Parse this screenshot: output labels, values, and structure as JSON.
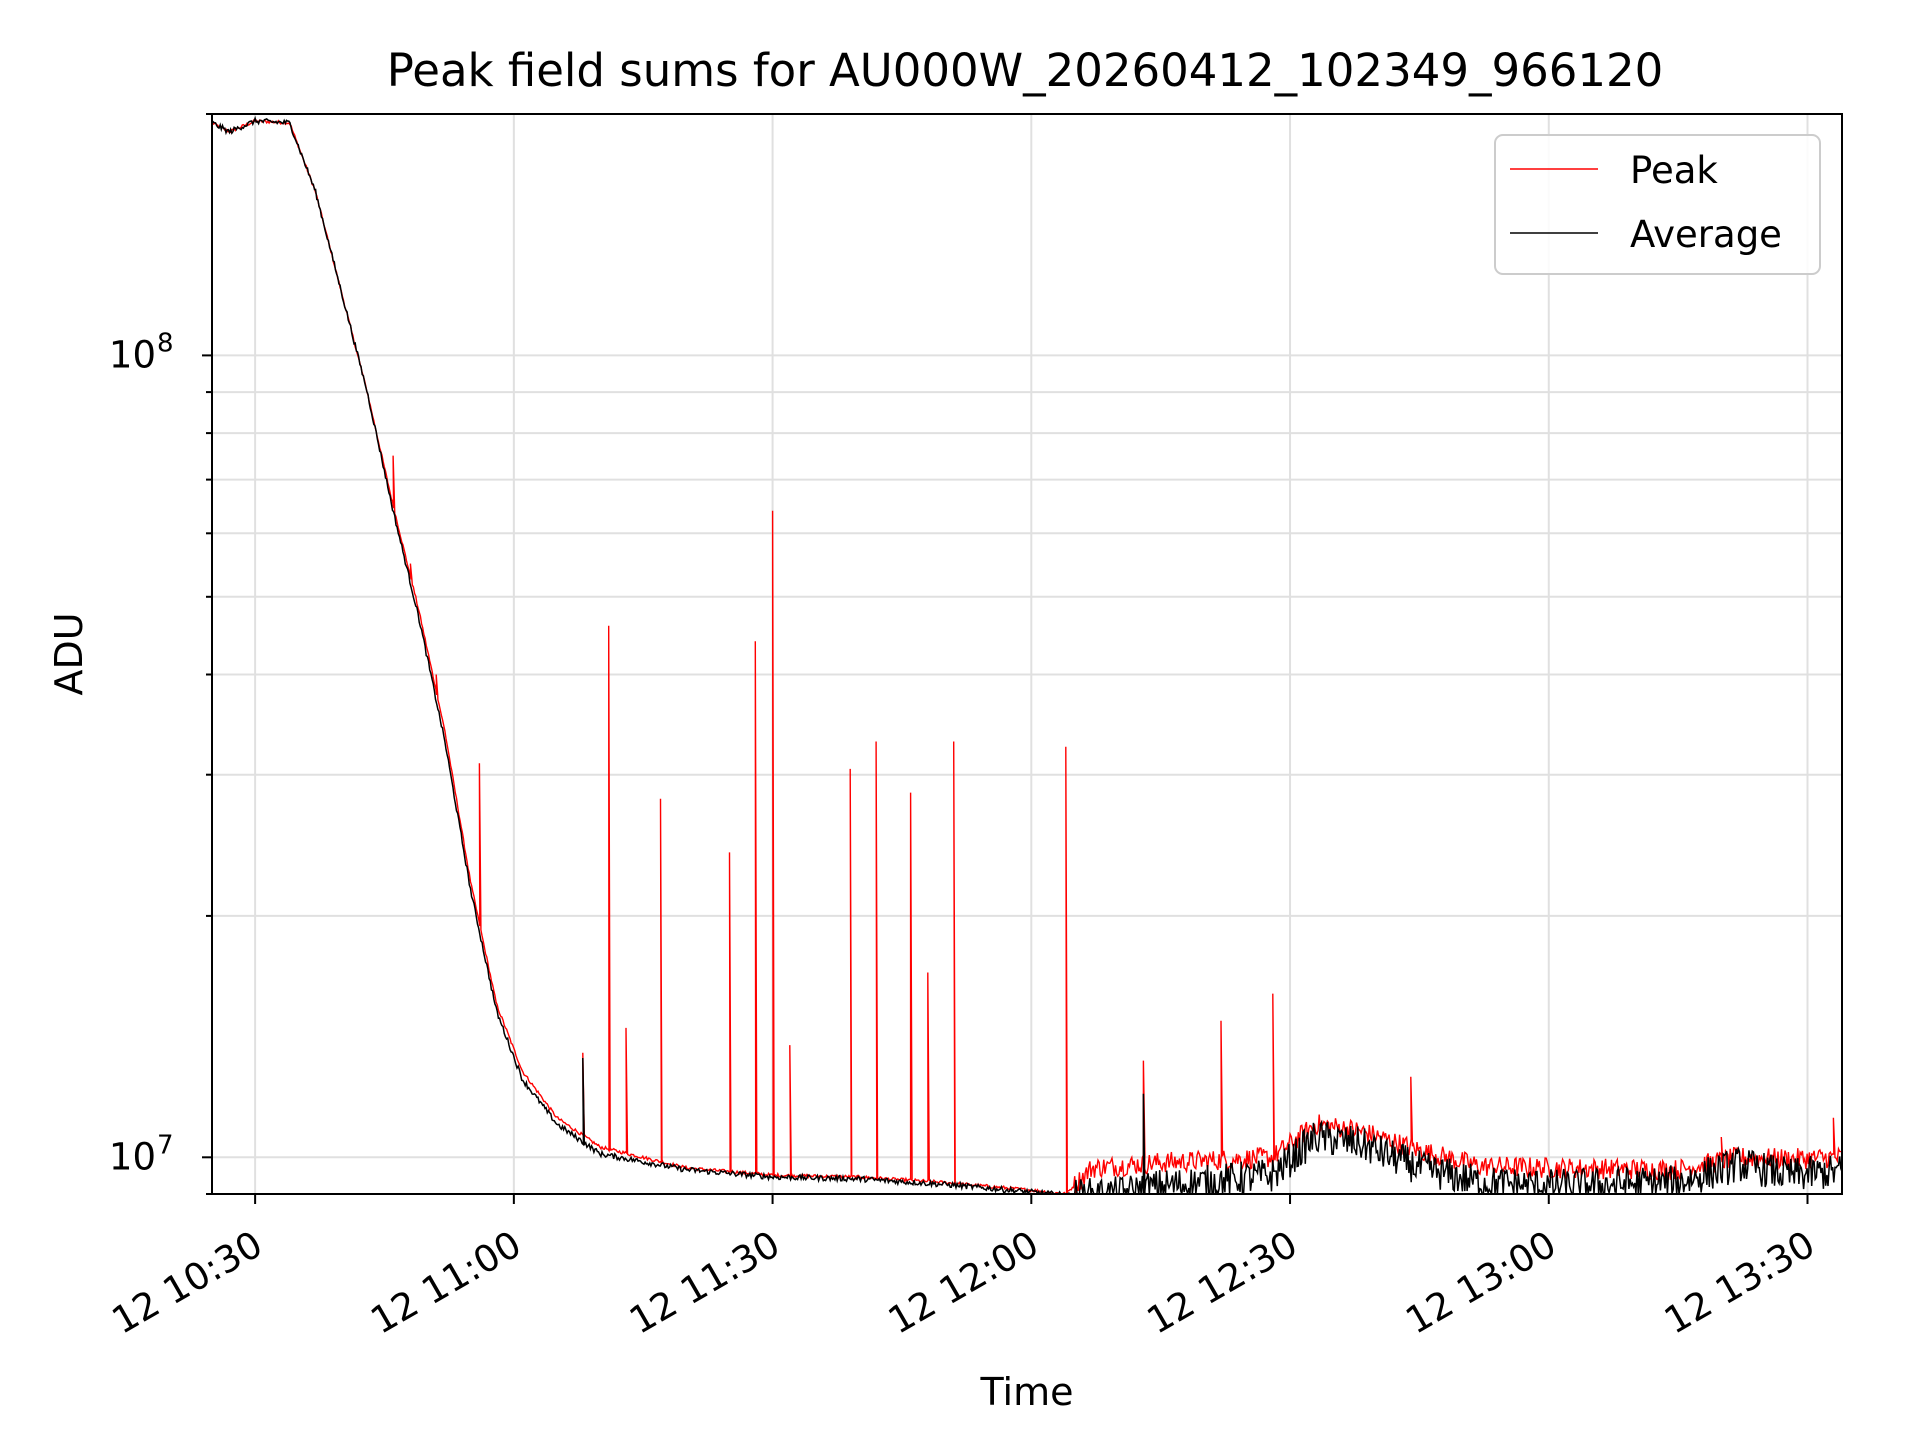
{
  "chart_data": {
    "type": "line",
    "title": "Peak field sums for AU000W_20260412_102349_966120",
    "xlabel": "Time",
    "ylabel": "ADU",
    "yscale": "log",
    "ylim": [
      9000000,
      200000000
    ],
    "xlim": [
      "2026-04-12 10:25",
      "2026-04-12 13:34"
    ],
    "x_ticks": [
      "12 10:30",
      "12 11:00",
      "12 11:30",
      "12 12:00",
      "12 12:30",
      "12 13:00",
      "12 13:30"
    ],
    "y_ticks": [
      {
        "base": "10",
        "exp": "7"
      },
      {
        "base": "10",
        "exp": "8"
      }
    ],
    "grid": true,
    "legend_position": "top-right",
    "series": [
      {
        "name": "Peak",
        "color": "#ff0000",
        "baseline": [
          [
            "2026-04-12 10:25",
            195000000
          ],
          [
            "2026-04-12 10:27",
            190000000
          ],
          [
            "2026-04-12 10:30",
            196000000
          ],
          [
            "2026-04-12 10:34",
            195000000
          ],
          [
            "2026-04-12 10:37",
            160000000
          ],
          [
            "2026-04-12 10:40",
            120000000
          ],
          [
            "2026-04-12 10:43",
            90000000
          ],
          [
            "2026-04-12 10:46",
            65000000
          ],
          [
            "2026-04-12 10:49",
            48000000
          ],
          [
            "2026-04-12 10:52",
            34000000
          ],
          [
            "2026-04-12 10:55",
            22000000
          ],
          [
            "2026-04-12 10:58",
            15500000
          ],
          [
            "2026-04-12 11:01",
            12800000
          ],
          [
            "2026-04-12 11:05",
            11200000
          ],
          [
            "2026-04-12 11:10",
            10300000
          ],
          [
            "2026-04-12 11:20",
            9700000
          ],
          [
            "2026-04-12 11:30",
            9500000
          ],
          [
            "2026-04-12 11:40",
            9450000
          ],
          [
            "2026-04-12 11:50",
            9300000
          ],
          [
            "2026-04-12 12:00",
            9100000
          ],
          [
            "2026-04-12 12:04",
            9000000
          ],
          [
            "2026-04-12 12:07",
            9700000
          ],
          [
            "2026-04-12 12:15",
            9850000
          ],
          [
            "2026-04-12 12:20",
            9900000
          ],
          [
            "2026-04-12 12:28",
            10000000
          ],
          [
            "2026-04-12 12:33",
            11000000
          ],
          [
            "2026-04-12 12:38",
            10800000
          ],
          [
            "2026-04-12 12:45",
            10200000
          ],
          [
            "2026-04-12 12:52",
            9750000
          ],
          [
            "2026-04-12 13:00",
            9700000
          ],
          [
            "2026-04-12 13:15",
            9650000
          ],
          [
            "2026-04-12 13:22",
            10000000
          ],
          [
            "2026-04-12 13:28",
            9950000
          ],
          [
            "2026-04-12 13:34",
            10000000
          ]
        ],
        "spikes": [
          [
            "2026-04-12 10:46",
            75000000
          ],
          [
            "2026-04-12 10:48",
            55000000
          ],
          [
            "2026-04-12 10:51",
            40000000
          ],
          [
            "2026-04-12 10:56",
            31000000
          ],
          [
            "2026-04-12 11:08",
            13500000
          ],
          [
            "2026-04-12 11:11",
            46000000
          ],
          [
            "2026-04-12 11:13",
            14500000
          ],
          [
            "2026-04-12 11:17",
            28000000
          ],
          [
            "2026-04-12 11:25",
            24000000
          ],
          [
            "2026-04-12 11:28",
            44000000
          ],
          [
            "2026-04-12 11:30",
            64000000
          ],
          [
            "2026-04-12 11:32",
            13800000
          ],
          [
            "2026-04-12 11:39",
            30500000
          ],
          [
            "2026-04-12 11:42",
            33000000
          ],
          [
            "2026-04-12 11:46",
            28500000
          ],
          [
            "2026-04-12 11:48",
            17000000
          ],
          [
            "2026-04-12 11:51",
            33000000
          ],
          [
            "2026-04-12 12:04",
            32500000
          ],
          [
            "2026-04-12 12:13",
            13200000
          ],
          [
            "2026-04-12 12:22",
            14800000
          ],
          [
            "2026-04-12 12:28",
            16000000
          ],
          [
            "2026-04-12 12:44",
            12600000
          ],
          [
            "2026-04-12 13:20",
            10600000
          ],
          [
            "2026-04-12 13:33",
            11200000
          ]
        ]
      },
      {
        "name": "Average",
        "color": "#000000",
        "baseline": [
          [
            "2026-04-12 10:25",
            195000000
          ],
          [
            "2026-04-12 10:27",
            190000000
          ],
          [
            "2026-04-12 10:30",
            196000000
          ],
          [
            "2026-04-12 10:34",
            195000000
          ],
          [
            "2026-04-12 10:37",
            160000000
          ],
          [
            "2026-04-12 10:40",
            120000000
          ],
          [
            "2026-04-12 10:43",
            90000000
          ],
          [
            "2026-04-12 10:46",
            64000000
          ],
          [
            "2026-04-12 10:49",
            47000000
          ],
          [
            "2026-04-12 10:52",
            33000000
          ],
          [
            "2026-04-12 10:55",
            21500000
          ],
          [
            "2026-04-12 10:58",
            15200000
          ],
          [
            "2026-04-12 11:01",
            12500000
          ],
          [
            "2026-04-12 11:05",
            11000000
          ],
          [
            "2026-04-12 11:10",
            10100000
          ],
          [
            "2026-04-12 11:20",
            9650000
          ],
          [
            "2026-04-12 11:30",
            9450000
          ],
          [
            "2026-04-12 11:40",
            9400000
          ],
          [
            "2026-04-12 11:50",
            9250000
          ],
          [
            "2026-04-12 12:00",
            9050000
          ],
          [
            "2026-04-12 12:05",
            8950000
          ],
          [
            "2026-04-12 12:10",
            9000000
          ],
          [
            "2026-04-12 12:15",
            9200000
          ],
          [
            "2026-04-12 12:20",
            9300000
          ],
          [
            "2026-04-12 12:28",
            9500000
          ],
          [
            "2026-04-12 12:33",
            10600000
          ],
          [
            "2026-04-12 12:38",
            10400000
          ],
          [
            "2026-04-12 12:45",
            9700000
          ],
          [
            "2026-04-12 12:52",
            9300000
          ],
          [
            "2026-04-12 13:00",
            9200000
          ],
          [
            "2026-04-12 13:15",
            9300000
          ],
          [
            "2026-04-12 13:22",
            9800000
          ],
          [
            "2026-04-12 13:28",
            9500000
          ],
          [
            "2026-04-12 13:34",
            9600000
          ]
        ],
        "spikes": [
          [
            "2026-04-12 11:08",
            13300000
          ],
          [
            "2026-04-12 12:13",
            12000000
          ]
        ]
      }
    ]
  }
}
